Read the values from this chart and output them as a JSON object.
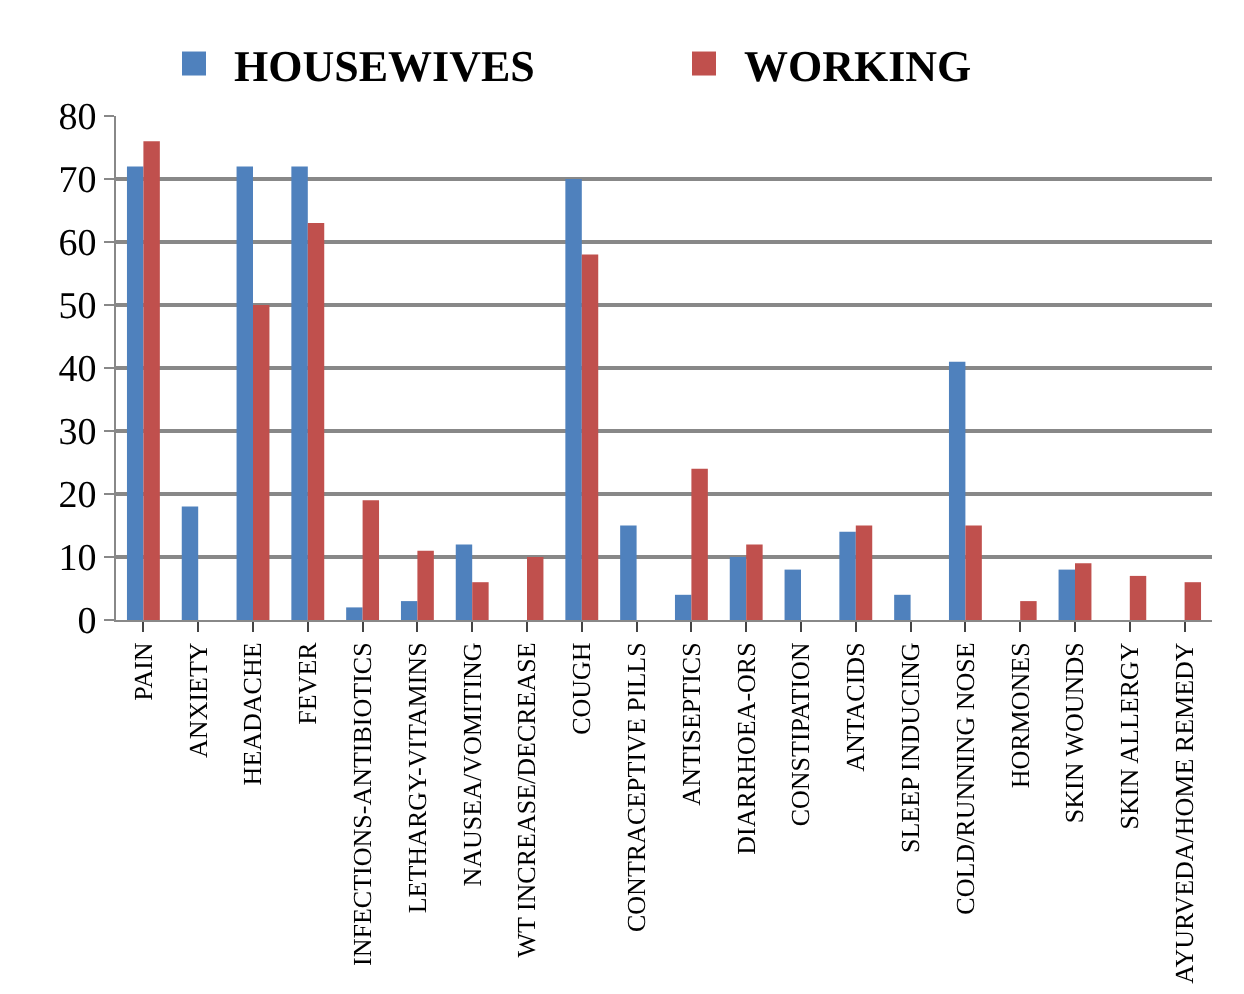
{
  "chart_data": {
    "type": "bar",
    "categories": [
      "PAIN",
      "ANXIETY",
      "HEADACHE",
      "FEVER",
      "INFECTIONS-ANTIBIOTICS",
      "LETHARGY-VITAMINS",
      "NAUSEA/VOMITING",
      "WT INCREASE/DECREASE",
      "COUGH",
      "CONTRACEPTIVE PILLS",
      "ANTISEPTICS",
      "DIARRHOEA-ORS",
      "CONSTIPATION",
      "ANTACIDS",
      "SLEEP INDUCING",
      "COLD/RUNNING NOSE",
      "HORMONES",
      "SKIN WOUNDS",
      "SKIN ALLERGY",
      "AYURVEDA/HOME REMEDY"
    ],
    "series": [
      {
        "name": "HOUSEWIVES",
        "color": "#4f81bd",
        "values": [
          72,
          18,
          72,
          72,
          2,
          3,
          12,
          0,
          70,
          15,
          4,
          10,
          8,
          14,
          4,
          41,
          0,
          8,
          0,
          0
        ]
      },
      {
        "name": "WORKING",
        "color": "#c0504d",
        "values": [
          76,
          0,
          50,
          63,
          19,
          11,
          6,
          10,
          58,
          0,
          24,
          12,
          0,
          15,
          0,
          15,
          3,
          9,
          7,
          6
        ]
      }
    ],
    "ylim": [
      0,
      80
    ],
    "yticks": [
      0,
      10,
      20,
      30,
      40,
      50,
      60,
      70,
      80
    ],
    "grid": "y",
    "legend": "top"
  }
}
